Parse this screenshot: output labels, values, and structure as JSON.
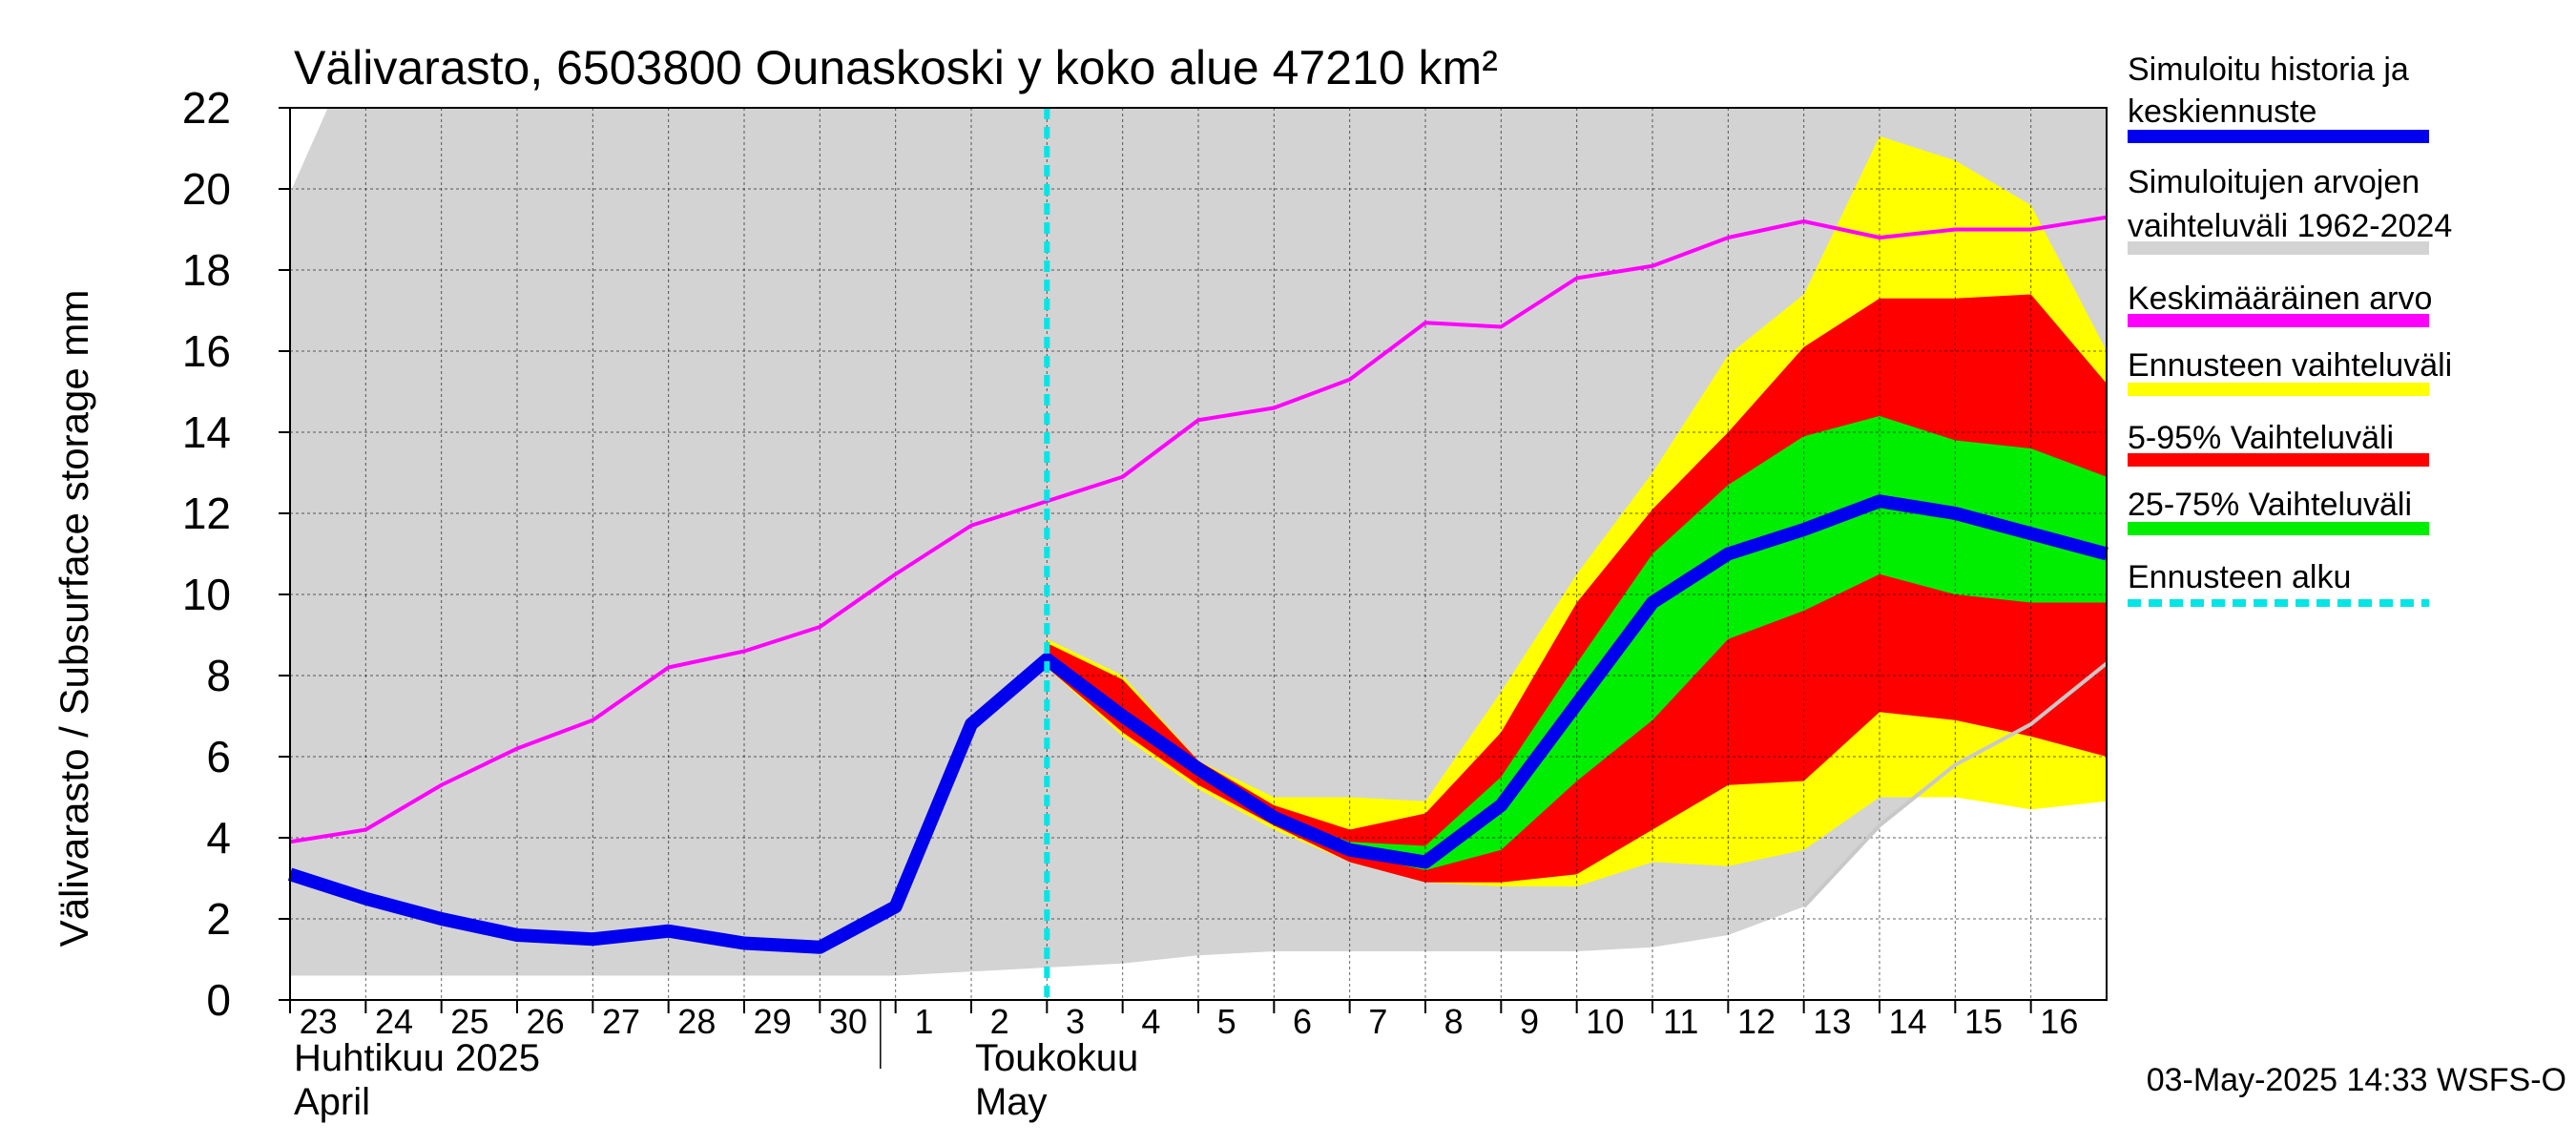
{
  "chart_data": {
    "type": "area",
    "title": "Välivarasto, 6503800 Ounaskoski y koko alue 47210 km²",
    "ylabel": "Välivarasto / Subsurface storage  mm",
    "ylim": [
      0,
      22
    ],
    "yticks": [
      0,
      2,
      4,
      6,
      8,
      10,
      12,
      14,
      16,
      18,
      20,
      22
    ],
    "grid": true,
    "x_day_range": [
      0,
      24
    ],
    "x_ticks": [
      {
        "d": 0,
        "label": "23"
      },
      {
        "d": 1,
        "label": "24"
      },
      {
        "d": 2,
        "label": "25"
      },
      {
        "d": 3,
        "label": "26"
      },
      {
        "d": 4,
        "label": "27"
      },
      {
        "d": 5,
        "label": "28"
      },
      {
        "d": 6,
        "label": "29"
      },
      {
        "d": 7,
        "label": "30"
      },
      {
        "d": 8,
        "label": "1"
      },
      {
        "d": 9,
        "label": "2"
      },
      {
        "d": 10,
        "label": "3"
      },
      {
        "d": 11,
        "label": "4"
      },
      {
        "d": 12,
        "label": "5"
      },
      {
        "d": 13,
        "label": "6"
      },
      {
        "d": 14,
        "label": "7"
      },
      {
        "d": 15,
        "label": "8"
      },
      {
        "d": 16,
        "label": "9"
      },
      {
        "d": 17,
        "label": "10"
      },
      {
        "d": 18,
        "label": "11"
      },
      {
        "d": 19,
        "label": "12"
      },
      {
        "d": 20,
        "label": "13"
      },
      {
        "d": 21,
        "label": "14"
      },
      {
        "d": 22,
        "label": "15"
      },
      {
        "d": 23,
        "label": "16"
      }
    ],
    "month_labels": {
      "april_fi": "Huhtikuu  2025",
      "april_en": "April",
      "may_fi": "Toukokuu",
      "may_en": "May"
    },
    "month_boundary_day": 7.8,
    "forecast_start_day": 10,
    "series": [
      {
        "name": "Simuloitujen arvojen vaihteluväli 1962-2024",
        "kind": "band",
        "color": "#d3d3d3",
        "x": [
          0,
          0.5,
          1,
          2,
          3,
          4,
          5,
          6,
          7,
          8,
          9,
          10,
          11,
          12,
          13,
          14,
          15,
          16,
          17,
          18,
          19,
          20,
          21,
          22,
          23,
          24
        ],
        "lower": [
          0.6,
          0.6,
          0.6,
          0.6,
          0.6,
          0.6,
          0.6,
          0.6,
          0.6,
          0.6,
          0.7,
          0.8,
          0.9,
          1.1,
          1.2,
          1.2,
          1.2,
          1.2,
          1.2,
          1.3,
          1.6,
          2.3,
          4.3,
          5.8,
          6.8,
          8.3
        ],
        "upper": [
          19.9,
          22.0,
          22.0,
          22.0,
          22.0,
          22.0,
          22.0,
          22.0,
          22.0,
          22.0,
          22.0,
          22.0,
          22.0,
          22.0,
          22.0,
          22.0,
          22.0,
          22.0,
          22.0,
          22.0,
          22.0,
          22.0,
          22.0,
          22.0,
          22.0,
          22.0
        ]
      },
      {
        "name": "Ennusteen vaihteluväli",
        "kind": "band",
        "color": "#ffff00",
        "x": [
          10,
          11,
          12,
          13,
          14,
          15,
          16,
          17,
          18,
          19,
          20,
          21,
          22,
          23,
          24
        ],
        "lower": [
          8.2,
          6.5,
          5.2,
          4.2,
          3.4,
          2.9,
          2.8,
          2.8,
          3.4,
          3.3,
          3.7,
          5.0,
          5.0,
          4.7,
          4.9
        ],
        "upper": [
          8.9,
          8.0,
          5.9,
          5.0,
          5.0,
          4.9,
          7.6,
          10.5,
          13.0,
          15.9,
          17.4,
          21.3,
          20.7,
          19.6,
          16.0
        ]
      },
      {
        "name": "5-95% Vaihteluväli",
        "kind": "band",
        "color": "#ff0000",
        "x": [
          10,
          11,
          12,
          13,
          14,
          15,
          16,
          17,
          18,
          19,
          20,
          21,
          22,
          23,
          24
        ],
        "lower": [
          8.2,
          6.6,
          5.3,
          4.3,
          3.4,
          2.9,
          2.9,
          3.1,
          4.2,
          5.3,
          5.4,
          7.1,
          6.9,
          6.5,
          6.0
        ],
        "upper": [
          8.8,
          7.9,
          5.9,
          4.8,
          4.2,
          4.6,
          6.6,
          9.8,
          12.1,
          14.0,
          16.1,
          17.3,
          17.3,
          17.4,
          15.2
        ]
      },
      {
        "name": "25-75% Vaihteluväli",
        "kind": "band",
        "color": "#00ee00",
        "x": [
          10,
          11,
          12,
          13,
          14,
          15,
          16,
          17,
          18,
          19,
          20,
          21,
          22,
          23,
          24
        ],
        "lower": [
          8.3,
          6.8,
          5.5,
          4.4,
          3.6,
          3.2,
          3.7,
          5.4,
          6.9,
          8.9,
          9.6,
          10.5,
          10.0,
          9.8,
          9.8
        ],
        "upper": [
          8.6,
          7.2,
          5.8,
          4.6,
          3.9,
          3.8,
          5.5,
          8.3,
          11.0,
          12.7,
          13.9,
          14.4,
          13.8,
          13.6,
          12.9
        ]
      },
      {
        "name": "Keskimääräinen arvo",
        "kind": "line",
        "color": "#ff00ff",
        "x": [
          0,
          1,
          2,
          3,
          4,
          5,
          6,
          7,
          8,
          9,
          10,
          11,
          12,
          13,
          14,
          15,
          16,
          17,
          18,
          19,
          20,
          21,
          22,
          23,
          24
        ],
        "y": [
          3.9,
          4.2,
          5.3,
          6.2,
          6.9,
          8.2,
          8.6,
          9.2,
          10.5,
          11.7,
          12.3,
          12.9,
          14.3,
          14.6,
          15.3,
          16.7,
          16.6,
          17.8,
          18.1,
          18.8,
          19.2,
          18.8,
          19.0,
          19.0,
          19.3
        ]
      },
      {
        "name": "Simuloitu historia ja keskiennuste",
        "kind": "line",
        "color": "#0000ee",
        "x": [
          0,
          1,
          2,
          3,
          4,
          5,
          6,
          7,
          8,
          9,
          10,
          11,
          12,
          13,
          14,
          15,
          16,
          17,
          18,
          19,
          20,
          21,
          22,
          23,
          24
        ],
        "y": [
          3.1,
          2.5,
          2.0,
          1.6,
          1.5,
          1.7,
          1.4,
          1.3,
          2.3,
          6.8,
          8.4,
          7.0,
          5.7,
          4.5,
          3.7,
          3.4,
          4.8,
          7.3,
          9.8,
          11.0,
          11.6,
          12.3,
          12.0,
          11.5,
          11.0
        ]
      }
    ],
    "legend": {
      "position": "right",
      "entries": [
        {
          "line1": "Simuloitu historia ja",
          "line2": "keskiennuste",
          "color": "#0000ee",
          "style": "solid"
        },
        {
          "line1": "Simuloitujen arvojen",
          "line2": "vaihteluväli 1962-2024",
          "color": "#d3d3d3",
          "style": "solid"
        },
        {
          "line1": "Keskimääräinen arvo",
          "line2": "",
          "color": "#ff00ff",
          "style": "solid"
        },
        {
          "line1": "Ennusteen vaihteluväli",
          "line2": "",
          "color": "#ffff00",
          "style": "solid"
        },
        {
          "line1": "5-95% Vaihteluväli",
          "line2": "",
          "color": "#ff0000",
          "style": "solid"
        },
        {
          "line1": "25-75% Vaihteluväli",
          "line2": "",
          "color": "#00ee00",
          "style": "solid"
        },
        {
          "line1": "Ennusteen alku",
          "line2": "",
          "color": "#00e5e5",
          "style": "dashed"
        }
      ]
    },
    "footer": "03-May-2025 14:33 WSFS-O"
  }
}
